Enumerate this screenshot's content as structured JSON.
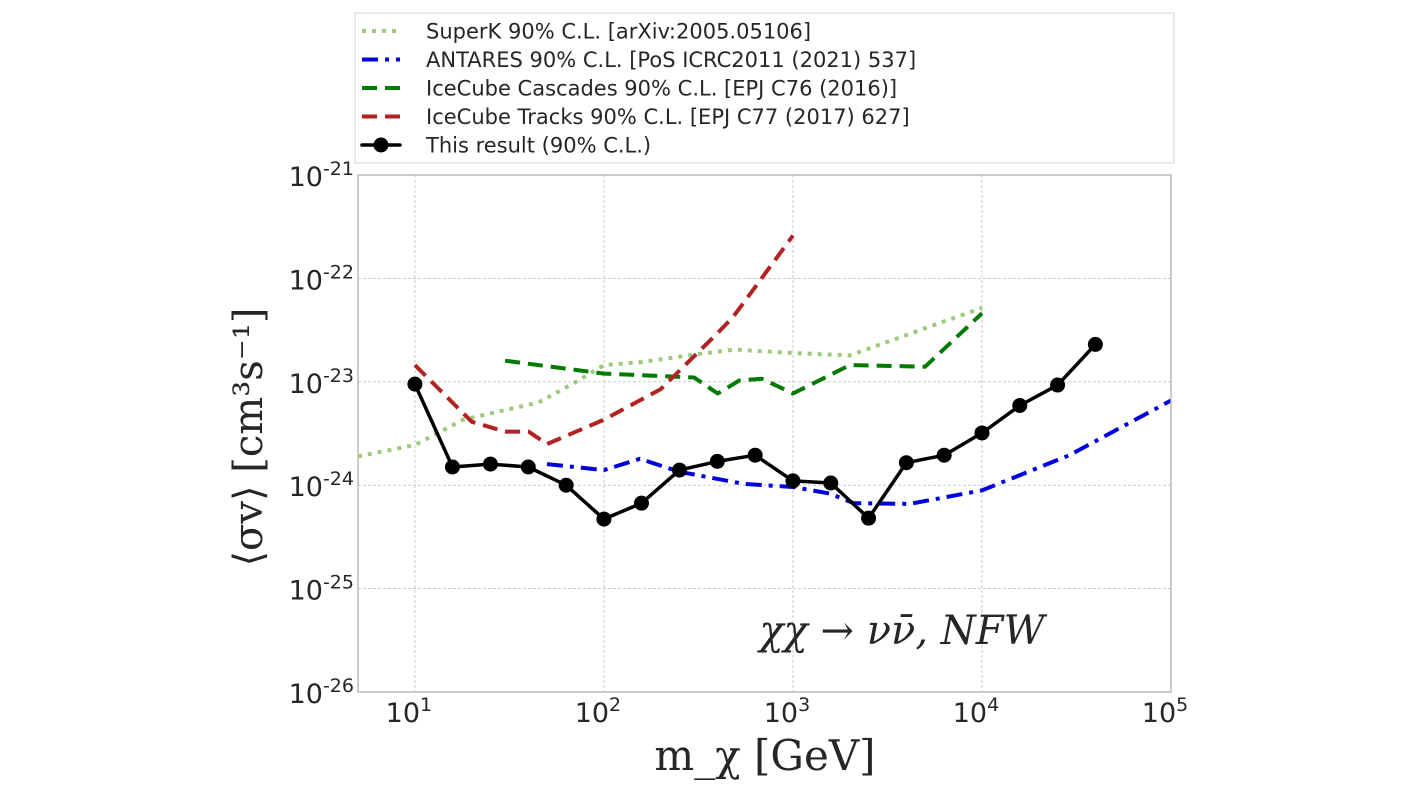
{
  "chart_data": {
    "type": "line",
    "title": "",
    "xlabel": "m_χ  [GeV]",
    "ylabel": "⟨σv⟩  [cm³s⁻¹]",
    "xscale": "log",
    "yscale": "log",
    "xlim": [
      5,
      100000
    ],
    "ylim": [
      1e-26,
      1e-21
    ],
    "grid": true,
    "legend_position": "top (above plot)",
    "x_ticks": [
      {
        "base": "10",
        "exp": "1",
        "value": 10
      },
      {
        "base": "10",
        "exp": "2",
        "value": 100
      },
      {
        "base": "10",
        "exp": "3",
        "value": 1000
      },
      {
        "base": "10",
        "exp": "4",
        "value": 10000
      },
      {
        "base": "10",
        "exp": "5",
        "value": 100000
      }
    ],
    "y_ticks": [
      {
        "base": "10",
        "exp": "-21",
        "value": 1e-21
      },
      {
        "base": "10",
        "exp": "-22",
        "value": 1e-22
      },
      {
        "base": "10",
        "exp": "-23",
        "value": 1e-23
      },
      {
        "base": "10",
        "exp": "-24",
        "value": 1e-24
      },
      {
        "base": "10",
        "exp": "-25",
        "value": 1e-25
      },
      {
        "base": "10",
        "exp": "-26",
        "value": 1e-26
      }
    ],
    "annotation": "χχ → νν̄,  NFW",
    "series": [
      {
        "name": "SuperK 90% C.L. [arXiv:2005.05106]",
        "color": "#9dc97a",
        "style": "dotted",
        "x": [
          5,
          10,
          18,
          45,
          70,
          100,
          158,
          320,
          490,
          1000,
          2000,
          10000
        ],
        "y": [
          1.9e-24,
          2.45e-24,
          4.3e-24,
          6.3e-24,
          9.8e-24,
          1.45e-23,
          1.55e-23,
          1.86e-23,
          2.05e-23,
          1.9e-23,
          1.8e-23,
          5.2e-23
        ]
      },
      {
        "name": "ANTARES 90% C.L. [PoS ICRC2011 (2021) 537]",
        "color": "#0000dd",
        "style": "dashdot",
        "x": [
          50,
          100,
          155,
          250,
          550,
          1000,
          1570,
          2100,
          4150,
          10000,
          29000,
          100000
        ],
        "y": [
          1.6e-24,
          1.4e-24,
          1.8e-24,
          1.35e-24,
          1.03e-24,
          9.6e-25,
          8.3e-25,
          6.7e-25,
          6.6e-25,
          8.9e-25,
          1.95e-24,
          6.6e-24
        ]
      },
      {
        "name": "IceCube Cascades 90% C.L. [EPJ C76 (2016)]",
        "color": "#007a00",
        "style": "dashed",
        "x": [
          30,
          100,
          300,
          400,
          520,
          685,
          1000,
          2000,
          5000,
          10000
        ],
        "y": [
          1.6e-23,
          1.2e-23,
          1.1e-23,
          7.7e-24,
          1.03e-23,
          1.07e-23,
          7.7e-24,
          1.45e-23,
          1.4e-23,
          4.6e-23
        ]
      },
      {
        "name": "IceCube Tracks 90% C.L. [EPJ C77 (2017) 627]",
        "color": "#b22222",
        "style": "dashed",
        "x": [
          10,
          20,
          30,
          40,
          50,
          100,
          200,
          395,
          480,
          615,
          1000
        ],
        "y": [
          1.45e-23,
          4.1e-24,
          3.3e-24,
          3.3e-24,
          2.5e-24,
          4.3e-24,
          8.5e-24,
          2.9e-23,
          4.2e-23,
          7.7e-23,
          2.6e-22
        ]
      },
      {
        "name": "This result (90% C.L.)",
        "color": "#000000",
        "style": "solid-marker",
        "x": [
          10,
          15.8,
          25.1,
          39.8,
          63.1,
          100,
          158,
          251,
          398,
          631,
          1000,
          1585,
          2512,
          3981,
          6310,
          10000,
          15849,
          25119,
          39811
        ],
        "y": [
          9.5e-24,
          1.5e-24,
          1.6e-24,
          1.5e-24,
          1e-24,
          4.7e-25,
          6.7e-25,
          1.4e-24,
          1.7e-24,
          1.95e-24,
          1.1e-24,
          1.05e-24,
          4.8e-25,
          1.65e-24,
          1.95e-24,
          3.2e-24,
          5.9e-24,
          9.3e-24,
          2.3e-23
        ]
      }
    ]
  }
}
